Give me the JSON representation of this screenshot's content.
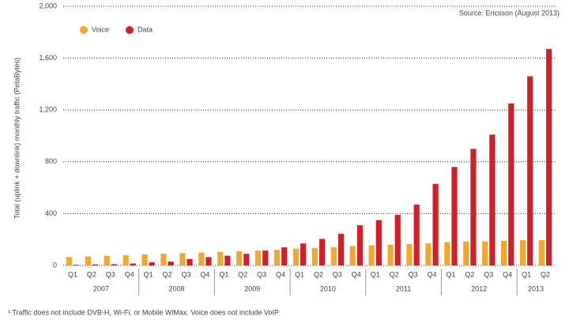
{
  "chart_data": {
    "type": "bar",
    "source": "Source: Ericsson (August 2013)",
    "y_label": "Total (uplink + downlink) monthly traffic (PetaBytes)",
    "footnote": "¹ Traffic does not include DVB-H, Wi-Fi, or Mobile WiMax. Voice does not include VoIP",
    "categories": [
      "Q1",
      "Q2",
      "Q3",
      "Q4",
      "Q1",
      "Q2",
      "Q3",
      "Q4",
      "Q1",
      "Q2",
      "Q3",
      "Q4",
      "Q1",
      "Q2",
      "Q3",
      "Q4",
      "Q1",
      "Q2",
      "Q3",
      "Q4",
      "Q1",
      "Q2",
      "Q3",
      "Q4",
      "Q1",
      "Q2"
    ],
    "years": [
      {
        "label": "2007",
        "quarters": 4
      },
      {
        "label": "2008",
        "quarters": 4
      },
      {
        "label": "2009",
        "quarters": 4
      },
      {
        "label": "2010",
        "quarters": 4
      },
      {
        "label": "2011",
        "quarters": 4
      },
      {
        "label": "2012",
        "quarters": 4
      },
      {
        "label": "2013",
        "quarters": 2
      }
    ],
    "series": [
      {
        "name": "Voice",
        "color": "#f0a830",
        "values": [
          65,
          70,
          75,
          80,
          85,
          90,
          95,
          100,
          105,
          110,
          115,
          120,
          130,
          135,
          140,
          150,
          155,
          160,
          165,
          170,
          180,
          185,
          185,
          190,
          195,
          195
        ]
      },
      {
        "name": "Data",
        "color": "#d0202a",
        "values": [
          5,
          8,
          10,
          15,
          25,
          30,
          50,
          65,
          75,
          90,
          115,
          140,
          170,
          205,
          245,
          310,
          350,
          390,
          470,
          630,
          760,
          900,
          1010,
          1250,
          1460,
          1670
        ]
      }
    ],
    "ylim": [
      0,
      2000
    ],
    "yticks": [
      0,
      400,
      800,
      {
        "value": 1200,
        "label": "1,200"
      },
      {
        "value": 1600,
        "label": "1,600"
      },
      {
        "value": 2000,
        "label": "2,000"
      }
    ],
    "grid": true
  }
}
